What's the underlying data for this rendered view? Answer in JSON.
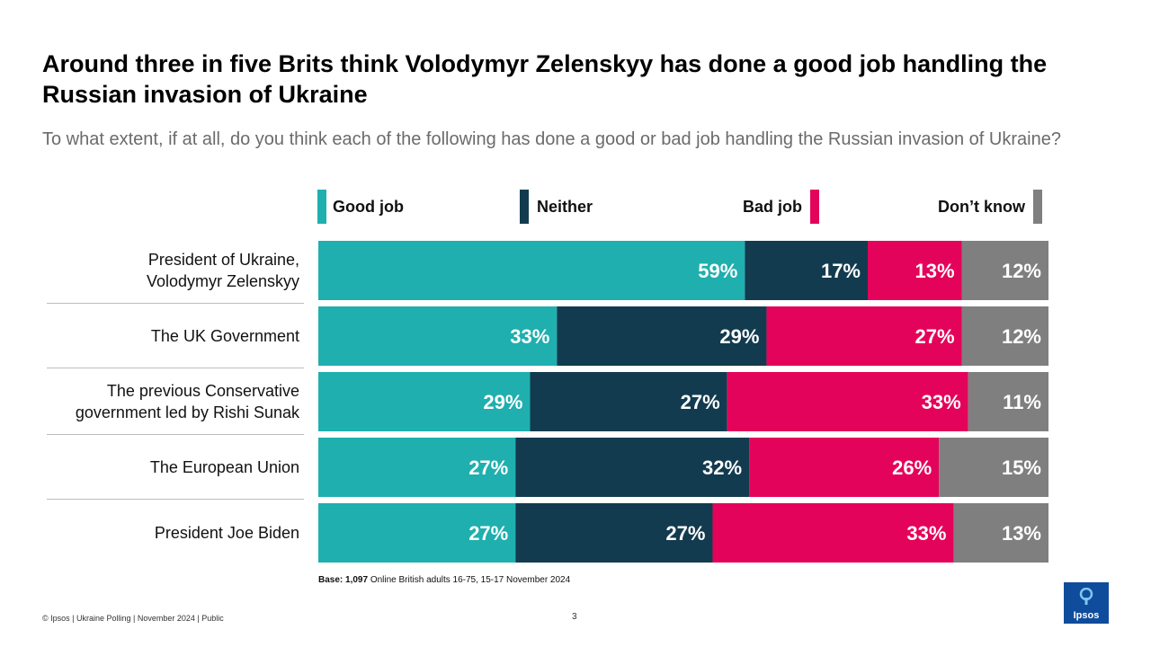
{
  "header": {
    "title": "Around three in five Brits think Volodymyr Zelenskyy has done a good job handling the Russian invasion of Ukraine",
    "subtitle": "To what extent, if at all, do you think each of the following has done a good or bad job handling the Russian invasion of Ukraine?"
  },
  "legend": {
    "good": "Good job",
    "neither": "Neither",
    "bad": "Bad job",
    "dont_know": "Don’t know"
  },
  "colors": {
    "good": "#1fafae",
    "neither": "#133b4f",
    "bad": "#e4035a",
    "dont_know": "#7f7f7f"
  },
  "rows": [
    {
      "label_line1": "President of Ukraine,",
      "label_line2": "Volodymyr Zelenskyy"
    },
    {
      "label_line1": "The UK Government",
      "label_line2": ""
    },
    {
      "label_line1": "The previous Conservative",
      "label_line2": "government led by Rishi Sunak"
    },
    {
      "label_line1": "The European Union",
      "label_line2": ""
    },
    {
      "label_line1": "President Joe Biden",
      "label_line2": ""
    }
  ],
  "chart_data": {
    "type": "bar",
    "orientation": "horizontal-stacked-100",
    "categories": [
      "President of Ukraine, Volodymyr Zelenskyy",
      "The UK Government",
      "The previous Conservative government led by Rishi Sunak",
      "The European Union",
      "President Joe Biden"
    ],
    "series": [
      {
        "name": "Good job",
        "values": [
          59,
          33,
          29,
          27,
          27
        ]
      },
      {
        "name": "Neither",
        "values": [
          17,
          29,
          27,
          32,
          27
        ]
      },
      {
        "name": "Bad job",
        "values": [
          13,
          27,
          33,
          26,
          33
        ]
      },
      {
        "name": "Don’t know",
        "values": [
          12,
          12,
          11,
          15,
          13
        ]
      }
    ],
    "unit": "%",
    "legend_position": "top"
  },
  "base_note": {
    "bold": "Base: 1,097",
    "text": " Online British adults 16-75, 15-17 November 2024"
  },
  "footer": {
    "text": "© Ipsos | Ukraine Polling | November 2024 | Public",
    "page_number": "3"
  },
  "logo": {
    "text": "Ipsos"
  }
}
